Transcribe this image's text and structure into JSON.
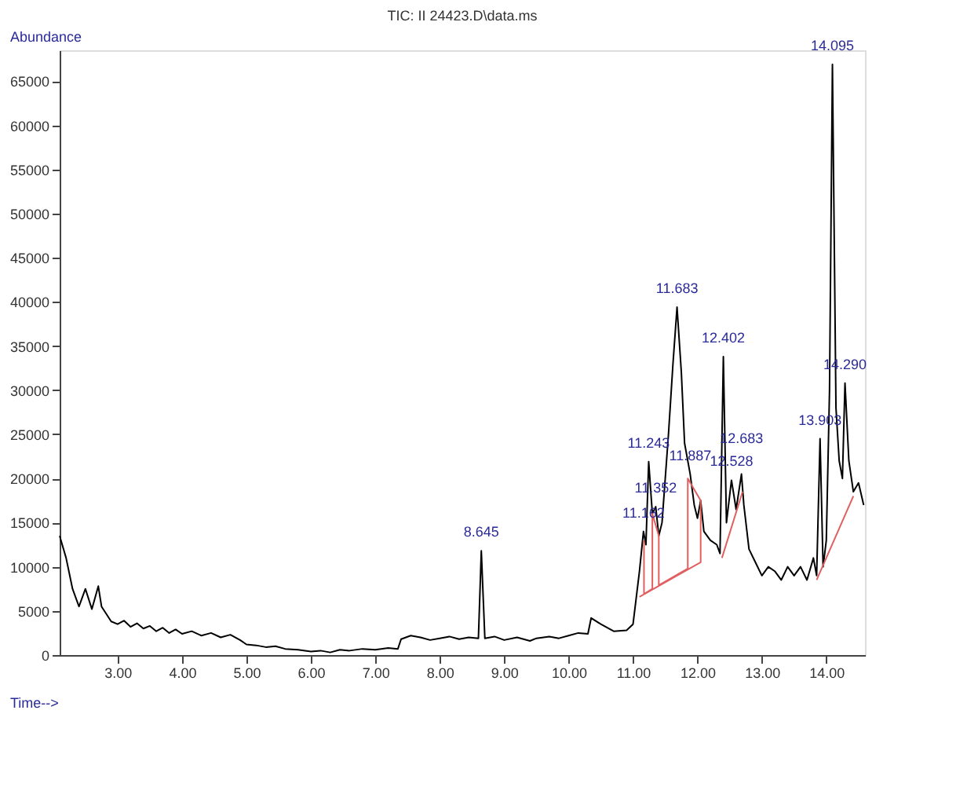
{
  "chart_data": {
    "type": "line",
    "title": "TIC: II 24423.D\\data.ms",
    "xlabel": "Time-->",
    "ylabel": "Abundance",
    "xlim": [
      2.1,
      14.6
    ],
    "ylim": [
      0,
      68500
    ],
    "xticks": [
      {
        "value": 3,
        "label": "3.00"
      },
      {
        "value": 4,
        "label": "4.00"
      },
      {
        "value": 5,
        "label": "5.00"
      },
      {
        "value": 6,
        "label": "6.00"
      },
      {
        "value": 7,
        "label": "7.00"
      },
      {
        "value": 8,
        "label": "8.00"
      },
      {
        "value": 9,
        "label": "9.00"
      },
      {
        "value": 10,
        "label": "10.00"
      },
      {
        "value": 11,
        "label": "11.00"
      },
      {
        "value": 12,
        "label": "12.00"
      },
      {
        "value": 13,
        "label": "13.00"
      },
      {
        "value": 14,
        "label": "14.00"
      }
    ],
    "yticks": [
      0,
      5000,
      10000,
      15000,
      20000,
      25000,
      30000,
      35000,
      40000,
      45000,
      50000,
      55000,
      60000,
      65000
    ],
    "grid": false,
    "marker": "none",
    "line_style": "solid",
    "series": [
      {
        "color": "#000000",
        "x": [
          2.1,
          2.2,
          2.3,
          2.4,
          2.5,
          2.6,
          2.7,
          2.75,
          2.9,
          3.0,
          3.1,
          3.2,
          3.3,
          3.4,
          3.5,
          3.6,
          3.7,
          3.8,
          3.9,
          4.0,
          4.15,
          4.3,
          4.45,
          4.6,
          4.75,
          4.9,
          5.0,
          5.15,
          5.3,
          5.45,
          5.6,
          5.8,
          6.0,
          6.15,
          6.3,
          6.45,
          6.6,
          6.8,
          7.0,
          7.2,
          7.35,
          7.4,
          7.55,
          7.7,
          7.85,
          8.0,
          8.15,
          8.3,
          8.45,
          8.6,
          8.645,
          8.7,
          8.85,
          9.0,
          9.2,
          9.4,
          9.5,
          9.7,
          9.85,
          10.0,
          10.15,
          10.3,
          10.35,
          10.5,
          10.7,
          10.9,
          11.0,
          11.05,
          11.1,
          11.162,
          11.2,
          11.243,
          11.3,
          11.352,
          11.4,
          11.45,
          11.55,
          11.62,
          11.683,
          11.75,
          11.8,
          11.887,
          11.95,
          12.0,
          12.05,
          12.1,
          12.2,
          12.3,
          12.35,
          12.402,
          12.45,
          12.528,
          12.6,
          12.683,
          12.72,
          12.8,
          12.9,
          13.0,
          13.1,
          13.2,
          13.3,
          13.4,
          13.5,
          13.6,
          13.7,
          13.8,
          13.85,
          13.903,
          13.95,
          14.0,
          14.05,
          14.095,
          14.15,
          14.2,
          14.25,
          14.29,
          14.35,
          14.42,
          14.5,
          14.58
        ],
        "values": [
          13500,
          11000,
          7500,
          5500,
          7500,
          5200,
          7800,
          5500,
          3800,
          3500,
          3900,
          3200,
          3600,
          3000,
          3300,
          2700,
          3100,
          2500,
          2900,
          2400,
          2700,
          2200,
          2500,
          2000,
          2300,
          1700,
          1200,
          1100,
          900,
          1000,
          700,
          600,
          400,
          500,
          300,
          600,
          500,
          700,
          600,
          800,
          700,
          1800,
          2200,
          2000,
          1700,
          1900,
          2100,
          1800,
          2000,
          1900,
          11800,
          1900,
          2100,
          1700,
          2000,
          1600,
          1900,
          2100,
          1900,
          2200,
          2500,
          2400,
          4200,
          3500,
          2700,
          2800,
          3500,
          6500,
          9500,
          14000,
          12500,
          21900,
          16000,
          16800,
          13500,
          15000,
          25000,
          33000,
          39400,
          32000,
          24000,
          20500,
          17000,
          15500,
          17500,
          14000,
          13000,
          12500,
          11500,
          33800,
          15000,
          19800,
          16500,
          20500,
          17000,
          12000,
          10500,
          9000,
          10000,
          9500,
          8500,
          10000,
          9000,
          10000,
          8500,
          11000,
          9000,
          24500,
          10000,
          13000,
          30000,
          66900,
          28000,
          22000,
          20000,
          30800,
          22000,
          18500,
          19500,
          17000
        ]
      },
      {
        "color": "#e06060",
        "x": [
          11.1,
          12.05,
          12.05,
          11.85,
          11.85,
          11.4,
          11.4,
          11.3,
          11.3,
          11.17,
          11.17,
          12.2,
          12.38,
          12.7,
          13.3,
          13.85,
          14.42
        ],
        "values": [
          6600,
          10500,
          17500,
          20000,
          9800,
          7900,
          13500,
          16000,
          7500,
          6900,
          13000,
          null,
          11000,
          18500,
          null,
          8500,
          18000
        ]
      }
    ],
    "annotations": [
      {
        "text": "8.645",
        "x": 8.645,
        "y": 11800
      },
      {
        "text": "11.162",
        "x": 11.162,
        "y": 14000
      },
      {
        "text": "11.243",
        "x": 11.243,
        "y": 21900
      },
      {
        "text": "11.352",
        "x": 11.352,
        "y": 16800
      },
      {
        "text": "11.683",
        "x": 11.683,
        "y": 39400
      },
      {
        "text": "11.887",
        "x": 11.887,
        "y": 20500
      },
      {
        "text": "12.402",
        "x": 12.402,
        "y": 33800
      },
      {
        "text": "12.528",
        "x": 12.528,
        "y": 19800
      },
      {
        "text": "12.683",
        "x": 12.683,
        "y": 20500
      },
      {
        "text": "13.903",
        "x": 13.903,
        "y": 24500
      },
      {
        "text": "14.095",
        "x": 14.095,
        "y": 66900
      },
      {
        "text": "14.290",
        "x": 14.29,
        "y": 30800
      }
    ]
  }
}
